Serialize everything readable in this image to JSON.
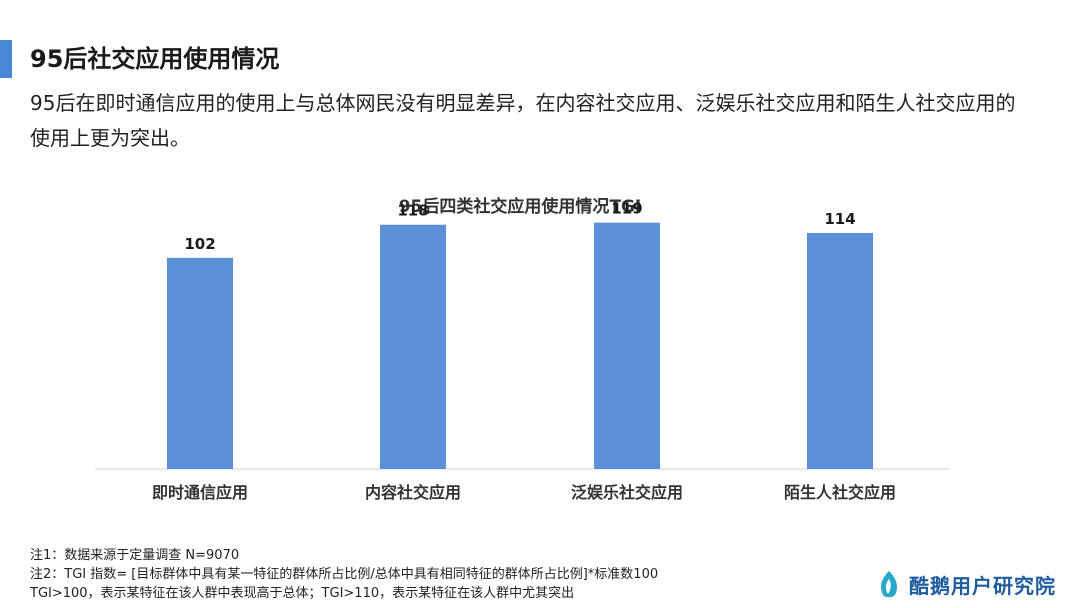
{
  "header": {
    "title": "95后社交应用使用情况",
    "subtitle": "95后在即时通信应用的使用上与总体网民没有明显差异，在内容社交应用、泛娱乐社交应用和陌生人社交应用的使用上更为突出。"
  },
  "chart_data": {
    "type": "bar",
    "title": "95后四类社交应用使用情况TGI",
    "categories": [
      "即时通信应用",
      "内容社交应用",
      "泛娱乐社交应用",
      "陌生人社交应用"
    ],
    "values": [
      102,
      118,
      119,
      114
    ],
    "data_labels": [
      "102",
      "118",
      "119",
      "114"
    ],
    "bar_color": "#5b8fd8",
    "grid": false,
    "legend": "none"
  },
  "notes": {
    "line1": "注1：数据来源于定量调查 N=9070",
    "line2": "注2：TGI 指数= [目标群体中具有某一特征的群体所占比例/总体中具有相同特征的群体所占比例]*标准数100",
    "line3": "TGI>100，表示某特征在该人群中表现高于总体；TGI>110，表示某特征在该人群中尤其突出"
  },
  "brand": {
    "name": "酷鹅用户研究院",
    "icon": "penguin-flame-logo",
    "color": "#1e5c9e"
  }
}
